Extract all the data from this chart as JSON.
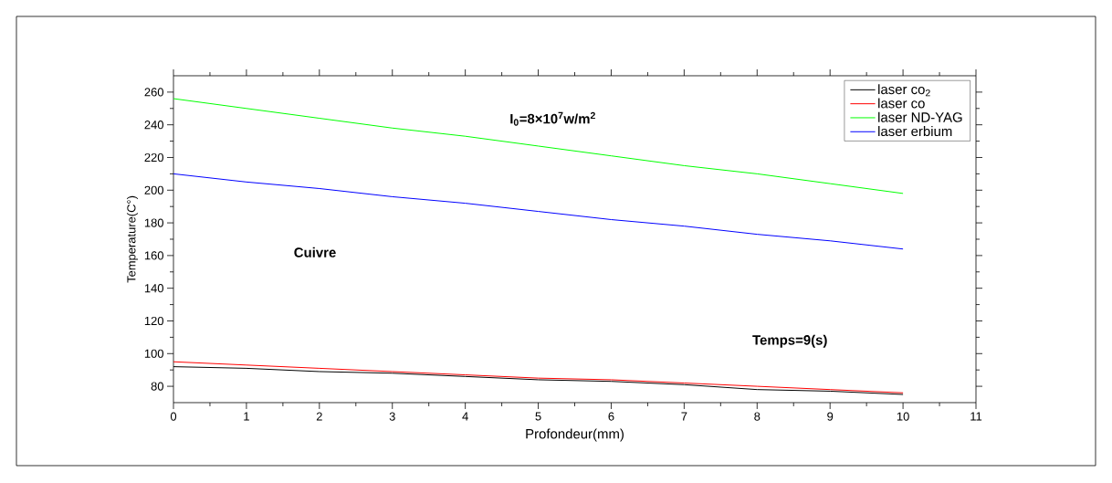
{
  "chart_data": {
    "type": "line",
    "xlabel": "Profondeur(mm)",
    "ylabel": "Temperature(C°)",
    "x": [
      0,
      1,
      2,
      3,
      4,
      5,
      6,
      7,
      8,
      9,
      10
    ],
    "series": [
      {
        "name": "laser co$_{2}$",
        "color": "#000000",
        "values": [
          92,
          91,
          89,
          88,
          86,
          84,
          83,
          81,
          78,
          77,
          75
        ]
      },
      {
        "name": "laser co",
        "color": "#ff0000",
        "values": [
          95,
          93,
          91,
          89,
          87,
          85,
          84,
          82,
          80,
          78,
          76
        ]
      },
      {
        "name": "laser ND-YAG",
        "color": "#00ff00",
        "values": [
          256,
          250,
          244,
          238,
          233,
          227,
          221,
          215,
          210,
          204,
          198
        ]
      },
      {
        "name": "laser erbium",
        "color": "#0000ff",
        "values": [
          210,
          205,
          201,
          196,
          192,
          187,
          182,
          178,
          173,
          169,
          164
        ]
      }
    ],
    "annotations": [
      "I$_{0}$=8×10$^{7}$w/m$^{2}$",
      "Cuivre",
      "Temps=9(s)"
    ],
    "xlim": [
      0,
      11
    ],
    "ylim": [
      70,
      270
    ],
    "xticks": [
      0,
      1,
      2,
      3,
      4,
      5,
      6,
      7,
      8,
      9,
      10,
      11
    ],
    "yticks": [
      80,
      100,
      120,
      140,
      160,
      180,
      200,
      220,
      240,
      260
    ],
    "legend": "top right",
    "grid": false,
    "marker": "none",
    "line_style": "solid"
  }
}
